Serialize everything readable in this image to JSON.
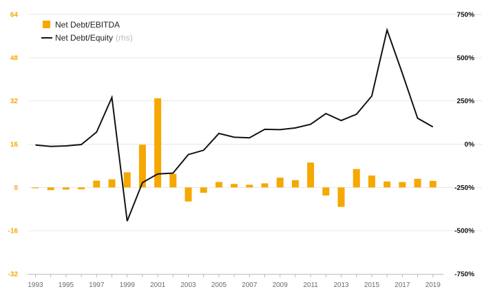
{
  "chart_data": {
    "type": "bar+line",
    "x": [
      1993,
      1994,
      1995,
      1996,
      1997,
      1998,
      1999,
      2000,
      2001,
      2002,
      2003,
      2004,
      2005,
      2006,
      2007,
      2008,
      2009,
      2010,
      2011,
      2012,
      2013,
      2014,
      2015,
      2016,
      2017,
      2018,
      2019
    ],
    "x_tick_labels": [
      "1993",
      "1995",
      "1997",
      "1999",
      "2001",
      "2003",
      "2005",
      "2007",
      "2009",
      "2011",
      "2013",
      "2015",
      "2017",
      "2019"
    ],
    "series": [
      {
        "name": "Net Debt/EBITDA",
        "type": "bar",
        "axis": "left",
        "color": "#f5a800",
        "values": [
          -0.3,
          -1.0,
          -0.8,
          -0.7,
          2.5,
          3.0,
          5.6,
          15.8,
          33.0,
          5.0,
          -5.2,
          -2.0,
          2.0,
          1.3,
          1.0,
          1.5,
          3.6,
          2.7,
          9.2,
          -3.0,
          -7.2,
          6.8,
          4.4,
          2.2,
          2.0,
          3.2,
          2.4
        ]
      },
      {
        "name": "Net Debt/Equity",
        "name_note": "(rhs)",
        "type": "line",
        "axis": "right",
        "color": "#111111",
        "values": [
          -5,
          -13,
          -10,
          -2,
          70,
          270,
          -445,
          -222,
          -172,
          -167,
          -60,
          -35,
          62,
          40,
          37,
          86,
          84,
          94,
          115,
          177,
          137,
          173,
          278,
          660,
          410,
          150,
          100
        ]
      }
    ],
    "y_left": {
      "range": [
        -32,
        64
      ],
      "ticks": [
        -32,
        -16,
        0,
        16,
        32,
        48,
        64
      ],
      "tick_labels": [
        "-32",
        "-16",
        "0",
        "16",
        "32",
        "48",
        "64"
      ]
    },
    "y_right": {
      "range": [
        -750,
        750
      ],
      "ticks": [
        -750,
        -500,
        -250,
        0,
        250,
        500,
        750
      ],
      "tick_labels": [
        "-750%",
        "-500%",
        "-250%",
        "0%",
        "250%",
        "500%",
        "750%"
      ]
    },
    "grid": true,
    "legend_position": "top-left",
    "title": "",
    "xlabel": "",
    "ylabel": ""
  }
}
